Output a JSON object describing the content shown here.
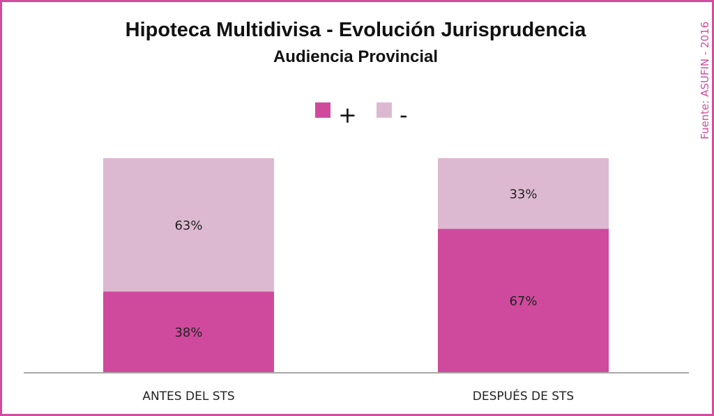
{
  "source_note": "Fuente: ASUFIN - 2016",
  "colors": {
    "positive": "#cf4a9c",
    "negative": "#ddb9d1",
    "border": "#d14b9e"
  },
  "chart_data": {
    "type": "bar",
    "stacked": true,
    "title": "Hipoteca Multidivisa - Evolución Jurisprudencia",
    "subtitle": "Audiencia Provincial",
    "categories": [
      "ANTES DEL STS",
      "DESPUÉS DE STS"
    ],
    "series": [
      {
        "name": "+",
        "values": [
          38,
          67
        ],
        "labels": [
          "38%",
          "67%"
        ],
        "color": "#cf4a9c"
      },
      {
        "name": "-",
        "values": [
          63,
          33
        ],
        "labels": [
          "63%",
          "33%"
        ],
        "color": "#ddb9d1"
      }
    ],
    "legend": "top-center",
    "ylim": [
      0,
      100
    ],
    "grid": false
  }
}
